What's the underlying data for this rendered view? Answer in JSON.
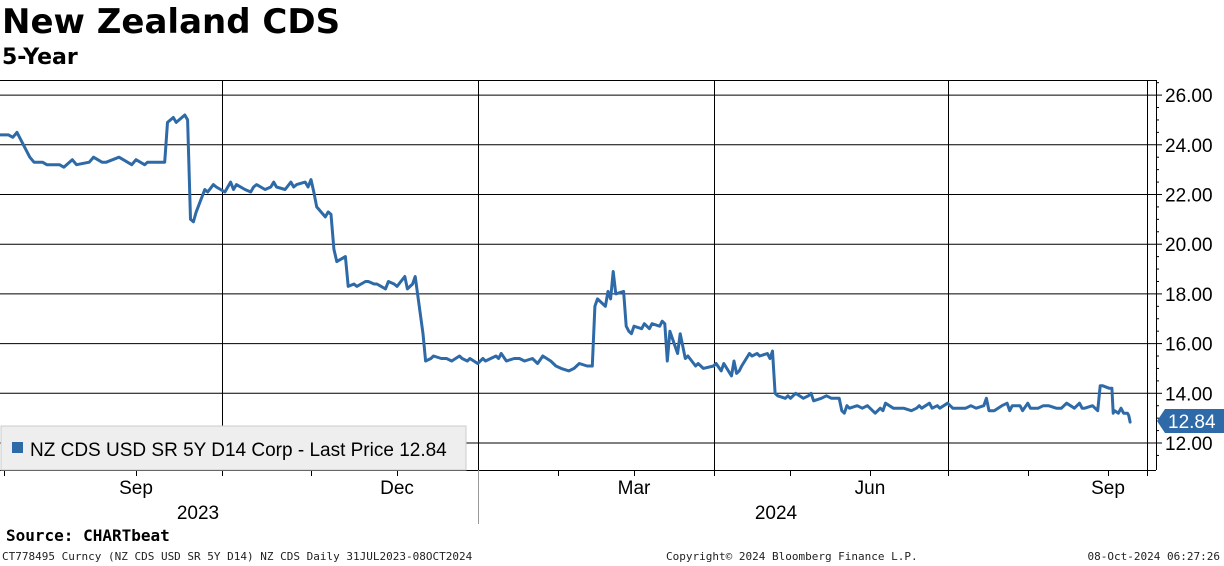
{
  "title": "New Zealand CDS",
  "subtitle": "5-Year",
  "source": "Source: CHARTbeat",
  "footer": {
    "left": "CT778495 Curncy (NZ CDS USD SR 5Y D14) NZ CDS  Daily 31JUL2023-08OCT2024",
    "center": "Copyright© 2024 Bloomberg Finance L.P.",
    "right": "08-Oct-2024 06:27:26"
  },
  "chart_data": {
    "type": "line",
    "title": "New Zealand CDS",
    "subtitle": "5-Year",
    "x_range": [
      "2023-07-31",
      "2024-10-08"
    ],
    "ylim": [
      11.2,
      26.6
    ],
    "y_ticks": [
      12,
      14,
      16,
      18,
      20,
      22,
      24,
      26
    ],
    "y_tick_labels": [
      "12.00",
      "14.00",
      "16.00",
      "18.00",
      "20.00",
      "22.00",
      "24.00",
      "26.00"
    ],
    "y_axis_side": "right",
    "grid": true,
    "x_month_labels": [
      {
        "label": "Sep",
        "date": "2023-09-01"
      },
      {
        "label": "Dec",
        "date": "2023-12-01"
      },
      {
        "label": "Mar",
        "date": "2024-03-01"
      },
      {
        "label": "Jun",
        "date": "2024-06-01"
      },
      {
        "label": "Sep",
        "date": "2024-09-01"
      }
    ],
    "x_year_labels": [
      {
        "label": "2023",
        "date": "2023-10-15"
      },
      {
        "label": "2024",
        "date": "2024-05-15"
      }
    ],
    "last_value_label": "12.84",
    "line_color": "#2e6aa7",
    "legend": {
      "label": "NZ CDS USD SR 5Y D14 Corp - Last Price 12.84",
      "position": "bottom-left"
    },
    "series": [
      {
        "name": "NZ CDS USD SR 5Y D14 Corp - Last Price 12.84",
        "points": [
          [
            "2023-07-31",
            24.4
          ],
          [
            "2023-08-02",
            24.4
          ],
          [
            "2023-08-03",
            24.3
          ],
          [
            "2023-08-04",
            24.5
          ],
          [
            "2023-08-07",
            23.5
          ],
          [
            "2023-08-08",
            23.3
          ],
          [
            "2023-08-10",
            23.3
          ],
          [
            "2023-08-11",
            23.2
          ],
          [
            "2023-08-14",
            23.2
          ],
          [
            "2023-08-15",
            23.1
          ],
          [
            "2023-08-17",
            23.4
          ],
          [
            "2023-08-18",
            23.2
          ],
          [
            "2023-08-21",
            23.3
          ],
          [
            "2023-08-22",
            23.5
          ],
          [
            "2023-08-24",
            23.3
          ],
          [
            "2023-08-25",
            23.3
          ],
          [
            "2023-08-28",
            23.5
          ],
          [
            "2023-08-29",
            23.4
          ],
          [
            "2023-08-31",
            23.2
          ],
          [
            "2023-09-01",
            23.4
          ],
          [
            "2023-09-04",
            23.2
          ],
          [
            "2023-09-05",
            23.3
          ],
          [
            "2023-09-07",
            23.3
          ],
          [
            "2023-09-11",
            23.3
          ],
          [
            "2023-09-12",
            24.9
          ],
          [
            "2023-09-14",
            25.1
          ],
          [
            "2023-09-15",
            24.9
          ],
          [
            "2023-09-18",
            25.2
          ],
          [
            "2023-09-19",
            25.0
          ],
          [
            "2023-09-20",
            21.0
          ],
          [
            "2023-09-21",
            20.9
          ],
          [
            "2023-09-22",
            21.3
          ],
          [
            "2023-09-25",
            22.2
          ],
          [
            "2023-09-26",
            22.1
          ],
          [
            "2023-09-28",
            22.4
          ],
          [
            "2023-09-29",
            22.3
          ],
          [
            "2023-10-02",
            22.1
          ],
          [
            "2023-10-04",
            22.5
          ],
          [
            "2023-10-05",
            22.2
          ],
          [
            "2023-10-06",
            22.4
          ],
          [
            "2023-10-09",
            22.2
          ],
          [
            "2023-10-11",
            22.1
          ],
          [
            "2023-10-12",
            22.3
          ],
          [
            "2023-10-13",
            22.4
          ],
          [
            "2023-10-16",
            22.2
          ],
          [
            "2023-10-18",
            22.3
          ],
          [
            "2023-10-19",
            22.5
          ],
          [
            "2023-10-20",
            22.3
          ],
          [
            "2023-10-23",
            22.2
          ],
          [
            "2023-10-25",
            22.5
          ],
          [
            "2023-10-26",
            22.3
          ],
          [
            "2023-10-27",
            22.4
          ],
          [
            "2023-10-30",
            22.5
          ],
          [
            "2023-10-31",
            22.3
          ],
          [
            "2023-11-01",
            22.6
          ],
          [
            "2023-11-02",
            22.1
          ],
          [
            "2023-11-03",
            21.5
          ],
          [
            "2023-11-06",
            21.1
          ],
          [
            "2023-11-07",
            21.3
          ],
          [
            "2023-11-08",
            21.2
          ],
          [
            "2023-11-09",
            19.8
          ],
          [
            "2023-11-10",
            19.3
          ],
          [
            "2023-11-13",
            19.5
          ],
          [
            "2023-11-14",
            18.3
          ],
          [
            "2023-11-16",
            18.4
          ],
          [
            "2023-11-17",
            18.3
          ],
          [
            "2023-11-20",
            18.5
          ],
          [
            "2023-11-21",
            18.5
          ],
          [
            "2023-11-23",
            18.4
          ],
          [
            "2023-11-24",
            18.4
          ],
          [
            "2023-11-27",
            18.2
          ],
          [
            "2023-11-28",
            18.5
          ],
          [
            "2023-11-30",
            18.4
          ],
          [
            "2023-12-01",
            18.3
          ],
          [
            "2023-12-04",
            18.7
          ],
          [
            "2023-12-05",
            18.2
          ],
          [
            "2023-12-07",
            18.4
          ],
          [
            "2023-12-08",
            18.7
          ],
          [
            "2023-12-11",
            16.4
          ],
          [
            "2023-12-12",
            15.3
          ],
          [
            "2023-12-14",
            15.4
          ],
          [
            "2023-12-15",
            15.5
          ],
          [
            "2023-12-18",
            15.4
          ],
          [
            "2023-12-20",
            15.4
          ],
          [
            "2023-12-22",
            15.3
          ],
          [
            "2023-12-25",
            15.5
          ],
          [
            "2023-12-26",
            15.4
          ],
          [
            "2023-12-28",
            15.3
          ],
          [
            "2023-12-29",
            15.4
          ],
          [
            "2024-01-01",
            15.2
          ],
          [
            "2024-01-03",
            15.4
          ],
          [
            "2024-01-04",
            15.3
          ],
          [
            "2024-01-08",
            15.5
          ],
          [
            "2024-01-09",
            15.4
          ],
          [
            "2024-01-10",
            15.6
          ],
          [
            "2024-01-12",
            15.3
          ],
          [
            "2024-01-15",
            15.4
          ],
          [
            "2024-01-17",
            15.4
          ],
          [
            "2024-01-19",
            15.3
          ],
          [
            "2024-01-22",
            15.4
          ],
          [
            "2024-01-24",
            15.2
          ],
          [
            "2024-01-26",
            15.5
          ],
          [
            "2024-01-29",
            15.3
          ],
          [
            "2024-01-31",
            15.1
          ],
          [
            "2024-02-02",
            15.0
          ],
          [
            "2024-02-05",
            14.9
          ],
          [
            "2024-02-07",
            15.0
          ],
          [
            "2024-02-09",
            15.2
          ],
          [
            "2024-02-12",
            15.1
          ],
          [
            "2024-02-14",
            15.1
          ],
          [
            "2024-02-15",
            17.5
          ],
          [
            "2024-02-16",
            17.8
          ],
          [
            "2024-02-19",
            17.5
          ],
          [
            "2024-02-20",
            18.1
          ],
          [
            "2024-02-21",
            17.8
          ],
          [
            "2024-02-22",
            18.9
          ],
          [
            "2024-02-23",
            18.0
          ],
          [
            "2024-02-26",
            18.1
          ],
          [
            "2024-02-27",
            16.7
          ],
          [
            "2024-02-28",
            16.5
          ],
          [
            "2024-02-29",
            16.4
          ],
          [
            "2024-03-01",
            16.7
          ],
          [
            "2024-03-04",
            16.6
          ],
          [
            "2024-03-05",
            16.8
          ],
          [
            "2024-03-07",
            16.6
          ],
          [
            "2024-03-08",
            16.8
          ],
          [
            "2024-03-11",
            16.7
          ],
          [
            "2024-03-12",
            16.9
          ],
          [
            "2024-03-13",
            16.8
          ],
          [
            "2024-03-14",
            15.3
          ],
          [
            "2024-03-15",
            16.5
          ],
          [
            "2024-03-18",
            15.6
          ],
          [
            "2024-03-19",
            16.4
          ],
          [
            "2024-03-21",
            15.4
          ],
          [
            "2024-03-22",
            15.5
          ],
          [
            "2024-03-25",
            15.1
          ],
          [
            "2024-03-26",
            15.2
          ],
          [
            "2024-03-28",
            15.0
          ],
          [
            "2024-04-01",
            15.1
          ],
          [
            "2024-04-02",
            15.2
          ],
          [
            "2024-04-04",
            14.9
          ],
          [
            "2024-04-05",
            15.2
          ],
          [
            "2024-04-08",
            14.7
          ],
          [
            "2024-04-09",
            15.3
          ],
          [
            "2024-04-10",
            14.8
          ],
          [
            "2024-04-11",
            14.9
          ],
          [
            "2024-04-12",
            15.1
          ],
          [
            "2024-04-15",
            15.6
          ],
          [
            "2024-04-16",
            15.5
          ],
          [
            "2024-04-18",
            15.6
          ],
          [
            "2024-04-19",
            15.5
          ],
          [
            "2024-04-22",
            15.6
          ],
          [
            "2024-04-23",
            15.4
          ],
          [
            "2024-04-24",
            15.7
          ],
          [
            "2024-04-25",
            14.0
          ],
          [
            "2024-04-26",
            13.9
          ],
          [
            "2024-04-29",
            13.8
          ],
          [
            "2024-04-30",
            13.9
          ],
          [
            "2024-05-01",
            13.8
          ],
          [
            "2024-05-03",
            14.0
          ],
          [
            "2024-05-06",
            13.8
          ],
          [
            "2024-05-08",
            13.9
          ],
          [
            "2024-05-09",
            14.0
          ],
          [
            "2024-05-10",
            13.7
          ],
          [
            "2024-05-13",
            13.8
          ],
          [
            "2024-05-15",
            13.9
          ],
          [
            "2024-05-17",
            13.8
          ],
          [
            "2024-05-20",
            13.8
          ],
          [
            "2024-05-21",
            13.3
          ],
          [
            "2024-05-22",
            13.2
          ],
          [
            "2024-05-23",
            13.5
          ],
          [
            "2024-05-24",
            13.4
          ],
          [
            "2024-05-27",
            13.5
          ],
          [
            "2024-05-29",
            13.4
          ],
          [
            "2024-05-31",
            13.5
          ],
          [
            "2024-06-03",
            13.2
          ],
          [
            "2024-06-05",
            13.4
          ],
          [
            "2024-06-06",
            13.3
          ],
          [
            "2024-06-07",
            13.6
          ],
          [
            "2024-06-10",
            13.4
          ],
          [
            "2024-06-12",
            13.4
          ],
          [
            "2024-06-14",
            13.4
          ],
          [
            "2024-06-17",
            13.3
          ],
          [
            "2024-06-19",
            13.4
          ],
          [
            "2024-06-20",
            13.5
          ],
          [
            "2024-06-21",
            13.4
          ],
          [
            "2024-06-24",
            13.6
          ],
          [
            "2024-06-25",
            13.4
          ],
          [
            "2024-06-27",
            13.5
          ],
          [
            "2024-06-28",
            13.4
          ],
          [
            "2024-07-01",
            13.6
          ],
          [
            "2024-07-03",
            13.4
          ],
          [
            "2024-07-05",
            13.4
          ],
          [
            "2024-07-08",
            13.4
          ],
          [
            "2024-07-10",
            13.5
          ],
          [
            "2024-07-12",
            13.4
          ],
          [
            "2024-07-15",
            13.5
          ],
          [
            "2024-07-16",
            13.8
          ],
          [
            "2024-07-17",
            13.3
          ],
          [
            "2024-07-19",
            13.3
          ],
          [
            "2024-07-22",
            13.5
          ],
          [
            "2024-07-24",
            13.6
          ],
          [
            "2024-07-25",
            13.3
          ],
          [
            "2024-07-26",
            13.5
          ],
          [
            "2024-07-29",
            13.5
          ],
          [
            "2024-07-30",
            13.3
          ],
          [
            "2024-08-01",
            13.6
          ],
          [
            "2024-08-02",
            13.4
          ],
          [
            "2024-08-05",
            13.4
          ],
          [
            "2024-08-07",
            13.5
          ],
          [
            "2024-08-09",
            13.5
          ],
          [
            "2024-08-12",
            13.4
          ],
          [
            "2024-08-14",
            13.4
          ],
          [
            "2024-08-16",
            13.6
          ],
          [
            "2024-08-19",
            13.4
          ],
          [
            "2024-08-21",
            13.6
          ],
          [
            "2024-08-22",
            13.4
          ],
          [
            "2024-08-23",
            13.4
          ],
          [
            "2024-08-26",
            13.5
          ],
          [
            "2024-08-28",
            13.3
          ],
          [
            "2024-08-29",
            14.3
          ],
          [
            "2024-08-30",
            14.3
          ],
          [
            "2024-09-02",
            14.2
          ],
          [
            "2024-09-04",
            14.2
          ],
          [
            "2024-09-05",
            13.2
          ],
          [
            "2024-09-06",
            13.3
          ],
          [
            "2024-09-09",
            13.2
          ],
          [
            "2024-09-11",
            13.4
          ],
          [
            "2024-09-12",
            13.3
          ],
          [
            "2024-09-13",
            13.2
          ],
          [
            "2024-09-16",
            13.2
          ],
          [
            "2024-09-17",
            13.1
          ],
          [
            "2024-09-18",
            12.84
          ]
        ]
      }
    ]
  }
}
